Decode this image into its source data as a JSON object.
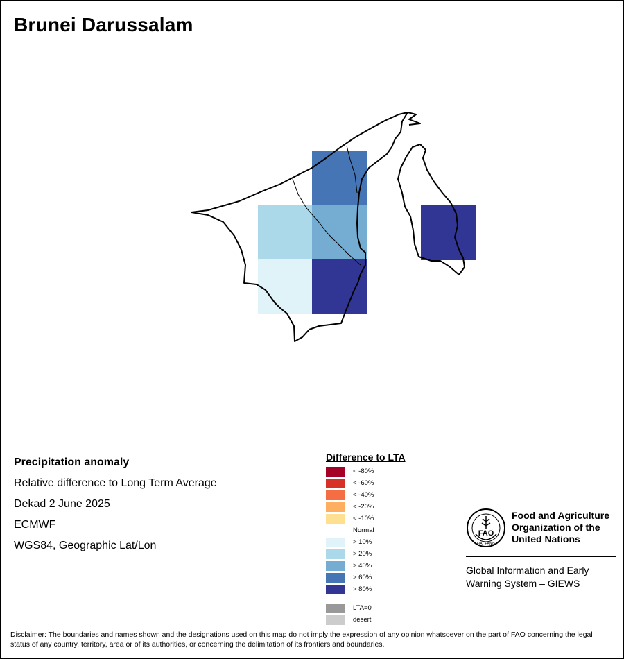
{
  "title": "Brunei Darussalam",
  "info": {
    "heading": "Precipitation anomaly",
    "subtitle": "Relative difference to Long Term Average",
    "period": "Dekad 2 June 2025",
    "model": "ECMWF",
    "projection": "WGS84, Geographic Lat/Lon"
  },
  "legend": {
    "title": "Difference to LTA",
    "items": [
      {
        "label": "< -80%",
        "color": "#a50026"
      },
      {
        "label": "< -60%",
        "color": "#d73027"
      },
      {
        "label": "< -40%",
        "color": "#f46d43"
      },
      {
        "label": "< -20%",
        "color": "#fdae61"
      },
      {
        "label": "< -10%",
        "color": "#fee090"
      },
      {
        "label": "Normal",
        "color": "#ffffff"
      },
      {
        "label": "> 10%",
        "color": "#e0f3f8"
      },
      {
        "label": "> 20%",
        "color": "#abd9e9"
      },
      {
        "label": "> 40%",
        "color": "#74add1"
      },
      {
        "label": "> 60%",
        "color": "#4575b4"
      },
      {
        "label": "> 80%",
        "color": "#313695"
      }
    ],
    "extra": [
      {
        "label": "LTA=0",
        "color": "#999999"
      },
      {
        "label": "desert",
        "color": "#cccccc"
      }
    ]
  },
  "map": {
    "grid_cells": [
      {
        "row": 0,
        "col": 1,
        "class": "> 60%"
      },
      {
        "row": 1,
        "col": 0,
        "class": "> 20%"
      },
      {
        "row": 1,
        "col": 1,
        "class": "> 40%"
      },
      {
        "row": 1,
        "col": 3,
        "class": "> 80%"
      },
      {
        "row": 2,
        "col": 0,
        "class": "> 10%"
      },
      {
        "row": 2,
        "col": 1,
        "class": "> 80%"
      }
    ]
  },
  "logo": {
    "emblem_text": "FAO",
    "motto": "FIAT PANIS",
    "name_lines": [
      "Food and Agriculture",
      "Organization of the",
      "United Nations"
    ],
    "giews_lines": [
      "Global Information and Early",
      "Warning System – GIEWS"
    ]
  },
  "disclaimer": "Disclaimer: The boundaries and names shown and the designations used on this map do not imply the expression of any opinion whatsoever on the part of FAO concerning the legal status of any country, territory, area or of its authorities, or concerning the delimitation of its frontiers and boundaries."
}
